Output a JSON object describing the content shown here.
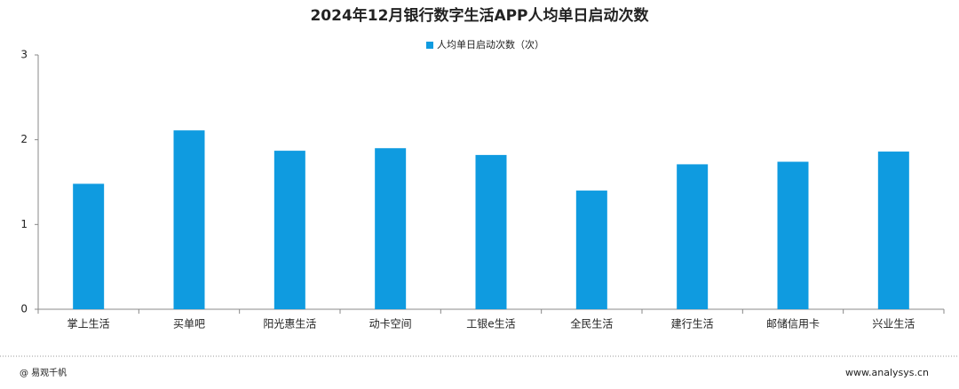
{
  "chart_data": {
    "type": "bar",
    "title": "2024年12月银行数字生活APP人均单日启动次数",
    "categories": [
      "掌上生活",
      "买单吧",
      "阳光惠生活",
      "动卡空间",
      "工银e生活",
      "全民生活",
      "建行生活",
      "邮储信用卡",
      "兴业生活"
    ],
    "series": [
      {
        "name": "人均单日启动次数（次）",
        "color": "#0f9be0",
        "values": [
          1.48,
          2.11,
          1.87,
          1.9,
          1.82,
          1.4,
          1.71,
          1.74,
          1.86
        ]
      }
    ],
    "ylim": [
      0,
      3
    ],
    "yticks": [
      0,
      1,
      2,
      3
    ],
    "grid": false,
    "legend": "top"
  },
  "footer": {
    "left": "@ 易观千帆",
    "right": "www.analysys.cn"
  }
}
